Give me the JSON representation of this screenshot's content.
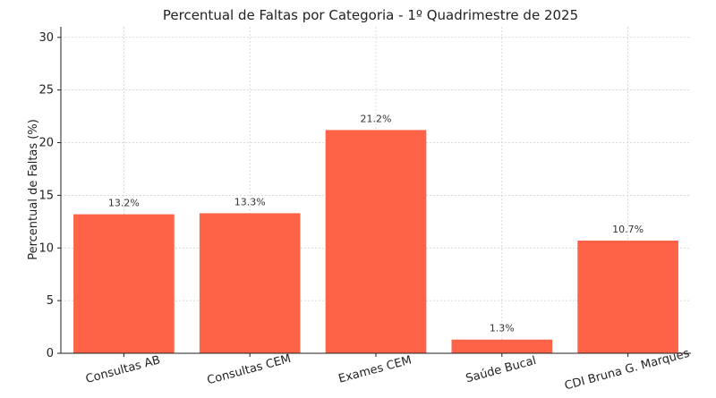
{
  "chart_data": {
    "type": "bar",
    "title": "Percentual de Faltas por Categoria - 1º Quadrimestre de 2025",
    "xlabel": "",
    "ylabel": "Percentual de Faltas (%)",
    "categories": [
      "Consultas AB",
      "Consultas CEM",
      "Exames CEM",
      "Saúde Bucal",
      "CDI Bruna G. Marques"
    ],
    "values": [
      13.2,
      13.3,
      21.2,
      1.3,
      10.7
    ],
    "value_labels": [
      "13.2%",
      "13.3%",
      "21.2%",
      "1.3%",
      "10.7%"
    ],
    "ylim": [
      0,
      31
    ],
    "yticks": [
      0,
      5,
      10,
      15,
      20,
      25,
      30
    ],
    "bar_color": "#FF6347",
    "grid": true,
    "x_tick_rotation_deg": 15
  }
}
